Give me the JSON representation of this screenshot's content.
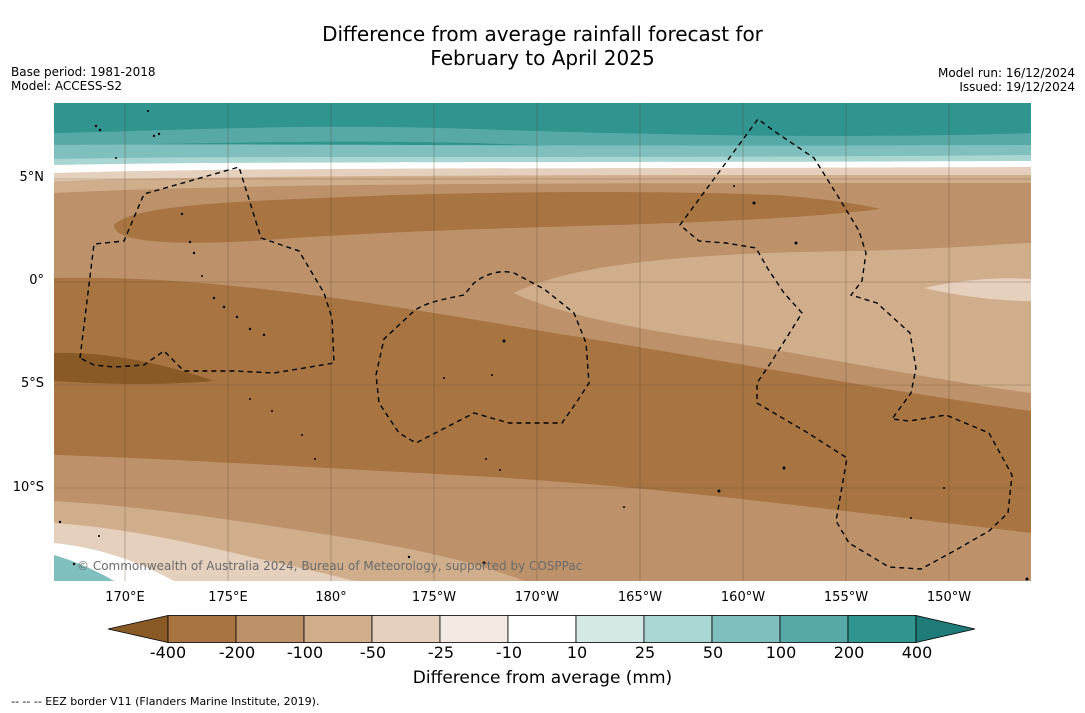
{
  "title_line1": "Difference from average rainfall forecast for",
  "title_line2": "February to April 2025",
  "base_period": "Base period: 1981-2018",
  "model": "Model: ACCESS-S2",
  "model_run": "Model run: 16/12/2024",
  "issued": "Issued: 19/12/2024",
  "credit": "© Commonwealth of Australia 2024, Bureau of Meteorology, supported by COSPPac",
  "lat_labels": [
    "5°N",
    "0°",
    "5°S",
    "10°S"
  ],
  "lon_labels": [
    "170°E",
    "175°E",
    "180°",
    "175°W",
    "170°W",
    "165°W",
    "160°W",
    "155°W",
    "150°W"
  ],
  "colorbar": {
    "ticks": [
      "-400",
      "-200",
      "-100",
      "-50",
      "-25",
      "-10",
      "10",
      "25",
      "50",
      "100",
      "200",
      "400"
    ],
    "colors": [
      "#8a5a26",
      "#a87542",
      "#bd926a",
      "#d0ae8c",
      "#e4d0bd",
      "#f1e9e2",
      "#ffffff",
      "#d4e9e5",
      "#a9d6d3",
      "#7fbfbd",
      "#57a9a7",
      "#30948f",
      "#1e7b78"
    ],
    "label": "Difference from average (mm)"
  },
  "legend_text": "--  --  -- EEZ border V11 (Flanders Marine Institute, 2019)."
}
